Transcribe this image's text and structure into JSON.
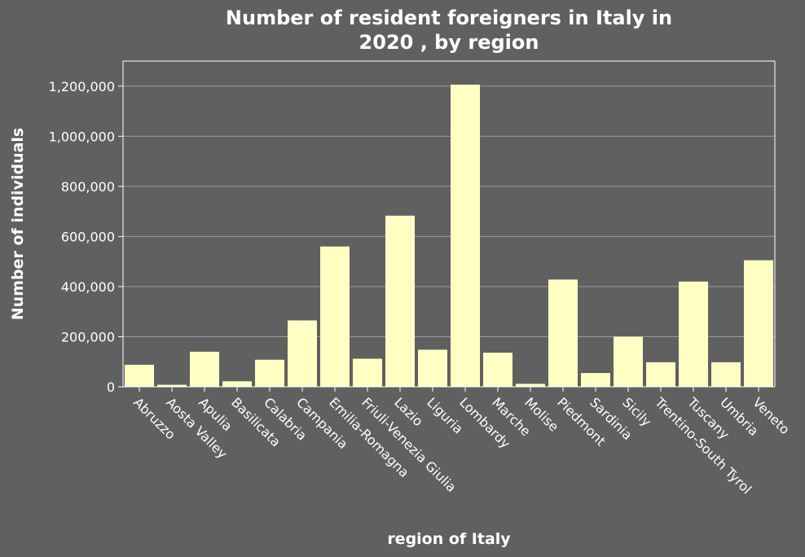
{
  "chart_data": {
    "type": "bar",
    "title_lines": [
      "Number of resident foreigners in Italy in",
      "2020 , by region"
    ],
    "xlabel": "region of Italy",
    "ylabel": "Number of individuals",
    "categories": [
      "Abruzzo",
      "Aosta Valley",
      "Apulia",
      "Basilicata",
      "Calabria",
      "Campania",
      "Emilia-Romagna",
      "Friuli-Venezia Giulia",
      "Lazio",
      "Liguria",
      "Lombardy",
      "Marche",
      "Molise",
      "Piedmont",
      "Sardinia",
      "Sicily",
      "Trentino-South Tyrol",
      "Tuscany",
      "Umbria",
      "Veneto"
    ],
    "values": [
      88000,
      8000,
      140000,
      22000,
      108000,
      265000,
      560000,
      112000,
      683000,
      148000,
      1206000,
      136000,
      12000,
      428000,
      55000,
      200000,
      98000,
      420000,
      98000,
      505000
    ],
    "ylim": [
      0,
      1300000
    ],
    "yticks": [
      0,
      200000,
      400000,
      600000,
      800000,
      1000000,
      1200000
    ],
    "ytick_labels": [
      "0",
      "200,000",
      "400,000",
      "600,000",
      "800,000",
      "1,000,000",
      "1,200,000"
    ],
    "grid": true,
    "colors": {
      "background": "#606060",
      "bar": "#ffffc4",
      "grid": "#9a9a9a",
      "text": "#ffffff"
    }
  }
}
